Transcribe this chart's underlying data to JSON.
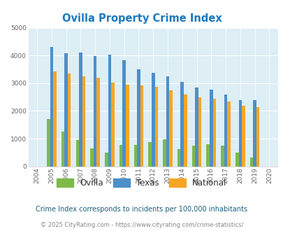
{
  "title": "Ovilla Property Crime Index",
  "years": [
    2004,
    2005,
    2006,
    2007,
    2008,
    2009,
    2010,
    2011,
    2012,
    2013,
    2014,
    2015,
    2016,
    2017,
    2018,
    2019,
    2020
  ],
  "ovilla": [
    0,
    1700,
    1250,
    950,
    650,
    500,
    770,
    770,
    880,
    970,
    610,
    760,
    790,
    760,
    490,
    310,
    0
  ],
  "texas": [
    0,
    4300,
    4080,
    4100,
    3990,
    4020,
    3820,
    3490,
    3370,
    3250,
    3050,
    2840,
    2770,
    2580,
    2390,
    2390,
    0
  ],
  "national": [
    0,
    3430,
    3340,
    3240,
    3190,
    3030,
    2950,
    2920,
    2870,
    2730,
    2600,
    2490,
    2450,
    2340,
    2190,
    2130,
    0
  ],
  "ovilla_color": "#7dba4a",
  "texas_color": "#4d8fc9",
  "national_color": "#f5a623",
  "bg_color": "#ddeef5",
  "ylim": [
    0,
    5000
  ],
  "yticks": [
    0,
    1000,
    2000,
    3000,
    4000,
    5000
  ],
  "subtitle": "Crime Index corresponds to incidents per 100,000 inhabitants",
  "footer": "© 2025 CityRating.com - https://www.cityrating.com/crime-statistics/",
  "title_color": "#1a7abf",
  "subtitle_color": "#1a6080",
  "footer_color": "#888888",
  "footer_url_color": "#3399bb"
}
